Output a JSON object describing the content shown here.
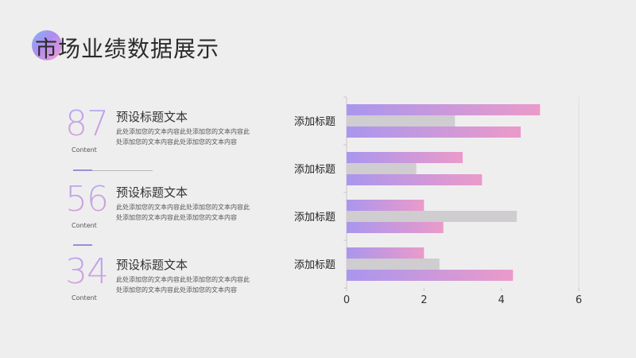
{
  "slide": {
    "title": "市场业绩数据展示"
  },
  "stats": [
    {
      "number": "87",
      "tag": "Content",
      "title": "预设标题文本",
      "desc": "此处添加您的文本内容此处添加您的文本内容此处添加您的文本内容此处添加您的文本内容"
    },
    {
      "number": "56",
      "tag": "Content",
      "title": "预设标题文本",
      "desc": "此处添加您的文本内容此处添加您的文本内容此处添加您的文本内容此处添加您的文本内容"
    },
    {
      "number": "34",
      "tag": "Content",
      "title": "预设标题文本",
      "desc": "此处添加您的文本内容此处添加您的文本内容此处添加您的文本内容此处添加您的文本内容"
    }
  ],
  "colors": {
    "gradient_start": "#a996ee",
    "gradient_end": "#eb9ac9",
    "gray_bar": "#cfcdd0",
    "text": "#333333"
  },
  "chart_data": {
    "type": "bar",
    "orientation": "horizontal",
    "categories": [
      "添加标题",
      "添加标题",
      "添加标题",
      "添加标题"
    ],
    "series": [
      {
        "values": [
          5,
          3,
          2,
          2
        ]
      },
      {
        "values": [
          2.8,
          1.8,
          4.4,
          2.4
        ]
      },
      {
        "values": [
          4.5,
          3.5,
          2.5,
          4.3
        ]
      }
    ],
    "xlim": [
      0,
      6
    ],
    "xticks": [
      "0",
      "2",
      "4",
      "6"
    ],
    "grid": false,
    "legend": "none"
  }
}
